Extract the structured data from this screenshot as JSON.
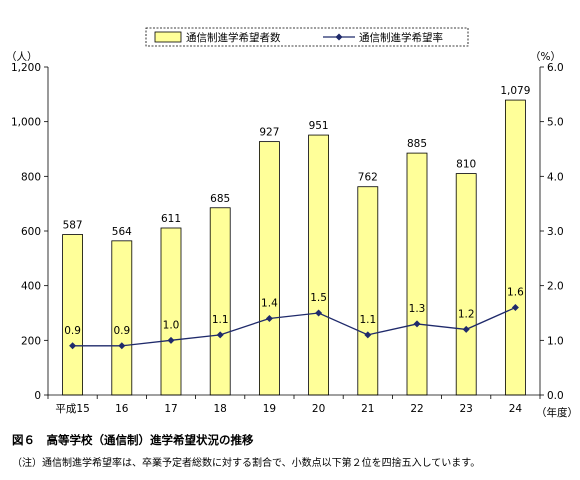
{
  "chart_data": {
    "type": "bar",
    "categories": [
      "平成15",
      "16",
      "17",
      "18",
      "19",
      "20",
      "21",
      "22",
      "23",
      "24"
    ],
    "series": [
      {
        "name": "通信制進学希望者数",
        "kind": "bar",
        "axis": "left",
        "values": [
          587,
          564,
          611,
          685,
          927,
          951,
          762,
          885,
          810,
          1079
        ],
        "labels": [
          "587",
          "564",
          "611",
          "685",
          "927",
          "951",
          "762",
          "885",
          "810",
          "1,079"
        ],
        "color": "#ffff99"
      },
      {
        "name": "通信制進学希望率",
        "kind": "line",
        "axis": "right",
        "values": [
          0.9,
          0.9,
          1.0,
          1.1,
          1.4,
          1.5,
          1.1,
          1.3,
          1.2,
          1.6
        ],
        "labels": [
          "0.9",
          "0.9",
          "1.0",
          "1.1",
          "1.4",
          "1.5",
          "1.1",
          "1.3",
          "1.2",
          "1.6"
        ],
        "color": "#1f2a6b"
      }
    ],
    "ylim": [
      0,
      1200
    ],
    "yticks": [
      "0",
      "200",
      "400",
      "600",
      "800",
      "1,000",
      "1,200"
    ],
    "y2lim": [
      0,
      6.0
    ],
    "y2ticks": [
      "0.0",
      "1.0",
      "2.0",
      "3.0",
      "4.0",
      "5.0",
      "6.0"
    ],
    "ylabel": "（人）",
    "y2label": "（%）",
    "xlabel": "（年度）",
    "legend_position": "top"
  },
  "caption": "図６　高等学校（通信制）進学希望状況の推移",
  "note": "（注）通信制進学希望率は、卒業予定者総数に対する割合で、小数点以下第２位を四捨五入しています。"
}
